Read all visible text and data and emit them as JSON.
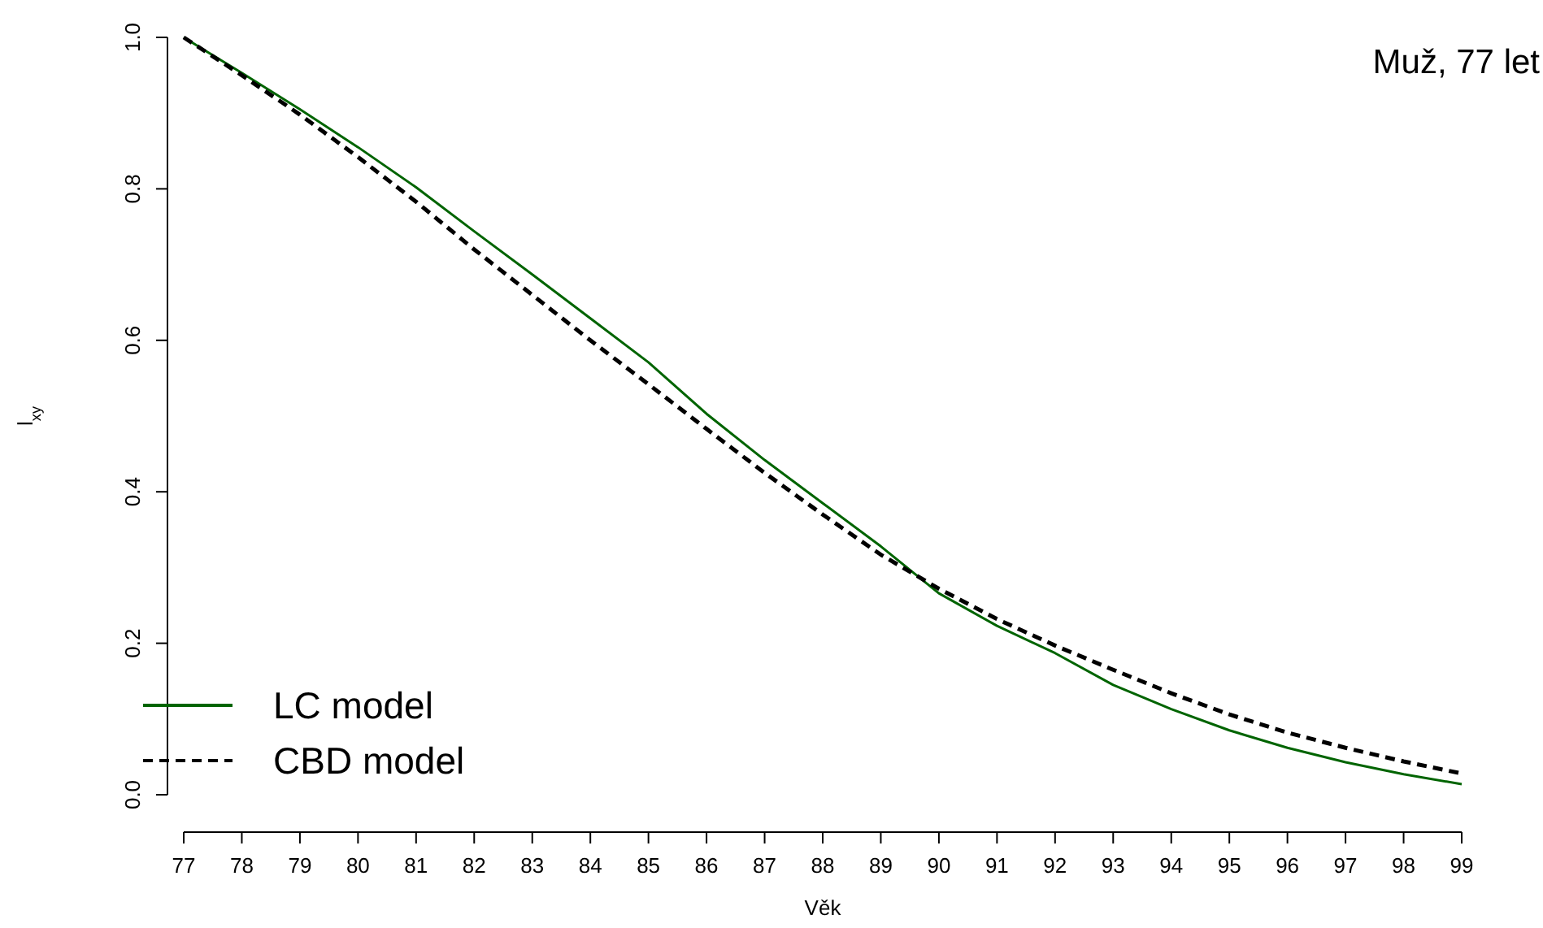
{
  "chart_data": {
    "type": "line",
    "xlabel": "Věk",
    "ylabel": "l$_{xy}$",
    "annotations": [
      "Muž, 77 let"
    ],
    "x": [
      77,
      78,
      79,
      80,
      81,
      82,
      83,
      84,
      85,
      86,
      87,
      88,
      89,
      90,
      91,
      92,
      93,
      94,
      95,
      96,
      97,
      98,
      99
    ],
    "xlim": [
      77,
      99
    ],
    "xticks": [
      77,
      78,
      79,
      80,
      81,
      82,
      83,
      84,
      85,
      86,
      87,
      88,
      89,
      90,
      91,
      92,
      93,
      94,
      95,
      96,
      97,
      98,
      99
    ],
    "ylim": [
      0,
      1
    ],
    "yticks": [
      {
        "value": 0,
        "label": "0.0"
      },
      {
        "value": 0.2,
        "label": "0.2"
      },
      {
        "value": 0.4,
        "label": "0.4"
      },
      {
        "value": 0.6,
        "label": "0.6"
      },
      {
        "value": 0.8,
        "label": "0.8"
      },
      {
        "value": 1,
        "label": "1.0"
      }
    ],
    "grid": false,
    "legend": "bottom left",
    "series": [
      {
        "name": "LC model",
        "color": "#006400",
        "line_style": "solid",
        "values": [
          1.0,
          0.953,
          0.905,
          0.855,
          0.802,
          0.744,
          0.687,
          0.629,
          0.571,
          0.503,
          0.442,
          0.385,
          0.328,
          0.266,
          0.223,
          0.187,
          0.145,
          0.113,
          0.085,
          0.062,
          0.043,
          0.027,
          0.014
        ]
      },
      {
        "name": "CBD model",
        "color": "#000000",
        "line_style": "dashed",
        "values": [
          1.0,
          0.95,
          0.898,
          0.842,
          0.783,
          0.72,
          0.66,
          0.6,
          0.542,
          0.483,
          0.425,
          0.37,
          0.317,
          0.272,
          0.232,
          0.197,
          0.165,
          0.134,
          0.106,
          0.082,
          0.062,
          0.044,
          0.028
        ]
      }
    ]
  }
}
